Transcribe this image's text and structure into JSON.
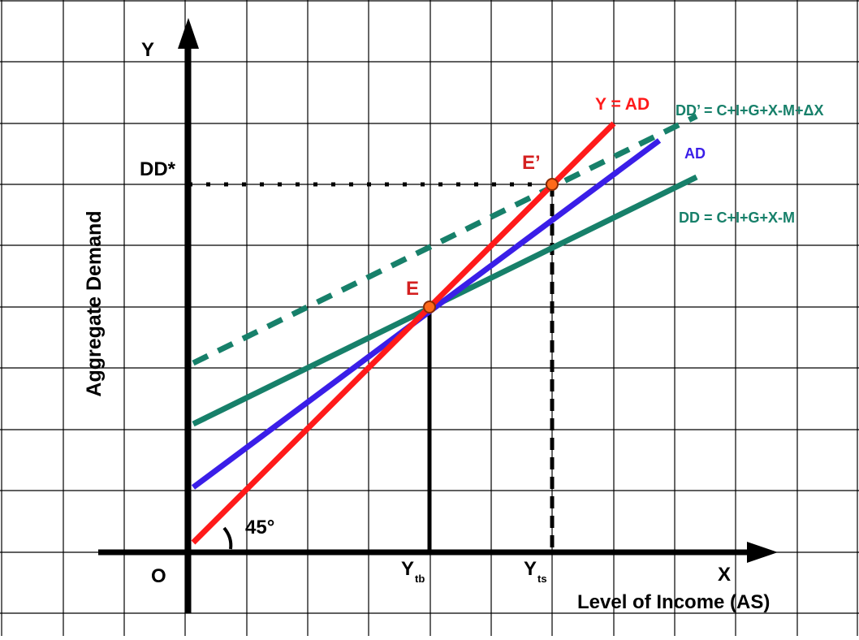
{
  "labels": {
    "y_axis_letter": "Y",
    "x_axis_letter": "X",
    "origin": "O",
    "y_axis_title": "Aggregate Demand",
    "x_axis_title": "Level of Income (AS)",
    "dd_star": "DD*",
    "y_tb_main": "Y",
    "y_tb_sub": "tb",
    "y_ts_main": "Y",
    "y_ts_sub": "ts",
    "angle": "45°",
    "point_e": "E",
    "point_e_prime": "E’",
    "line_45": "Y = AD",
    "line_ad": "AD",
    "line_dd": "DD = C+I+G+X-M",
    "line_dd_prime": "DD’ = C+I+G+X-M+ΔX"
  },
  "colors": {
    "grid": "#000000",
    "axis": "#000000",
    "line_45": "#ff1a1a",
    "line_ad": "#3a1ee8",
    "line_dd": "#17806a",
    "line_dd_prime": "#17806a",
    "point_fill": "#ff6a1a",
    "point_stroke": "#8a2a00",
    "label_red": "#d42020",
    "label_blue": "#3a1ee8",
    "label_green": "#17806a"
  }
}
